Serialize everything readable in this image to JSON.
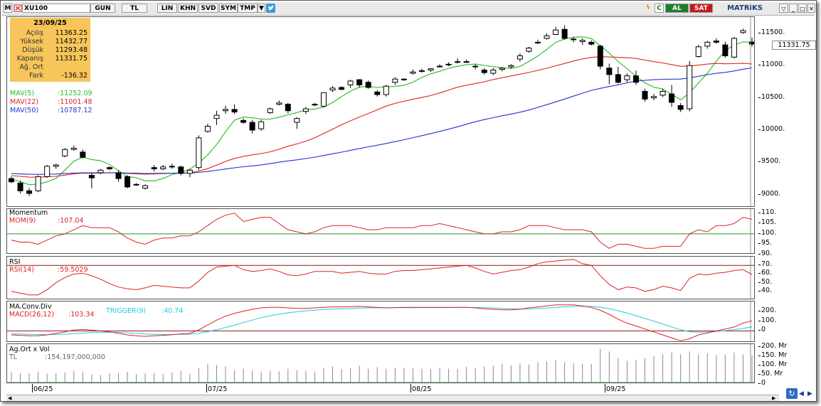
{
  "toolbar": {
    "menu_icon": "M",
    "symbol": "XU100",
    "buttons": [
      "GUN",
      "TL",
      "LIN",
      "KHN",
      "SVD",
      "SYM",
      "TMP"
    ],
    "al_label": "AL",
    "sat_label": "SAT",
    "brand": "MATRiKS",
    "c_label": "C"
  },
  "info": {
    "date": "23/09/25",
    "rows": [
      {
        "label": "Açılış",
        "value": "11363.25"
      },
      {
        "label": "Yüksek",
        "value": "11432.77"
      },
      {
        "label": "Düşük",
        "value": "11293.48"
      },
      {
        "label": "Kapanış",
        "value": "11331.75"
      },
      {
        "label": "Ağ. Ort",
        "value": ""
      },
      {
        "label": "Fark",
        "value": "-136.32"
      }
    ]
  },
  "ma_labels": [
    {
      "name": "MAV(5)",
      "value": ":11252.09",
      "color": "#22bb22"
    },
    {
      "name": "MAV(22)",
      "value": ":11001.48",
      "color": "#dd2222"
    },
    {
      "name": "MAV(50)",
      "value": ":10787.12",
      "color": "#2233cc"
    }
  ],
  "price_axis": {
    "ticks": [
      "11500.",
      "11000.",
      "10500.",
      "10000.",
      "9500.",
      "9000."
    ],
    "last": "11331.75"
  },
  "momentum": {
    "title": "Momentum",
    "label": "MOM(9)",
    "value": ":107.04",
    "ticks": [
      "110.",
      "105.",
      "100.",
      "95.",
      "90."
    ]
  },
  "rsi": {
    "title": "RSI",
    "label": "RSI(14)",
    "value": ":59.5029",
    "ticks": [
      "70.",
      "60.",
      "50.",
      "40."
    ]
  },
  "macd": {
    "title": "MA.Conv.Div",
    "label": "MACD(26,12)",
    "value": ":103.34",
    "trigger_label": "TRIGGER(9)",
    "trigger_value": ":40.74",
    "ticks": [
      "200.",
      "100.",
      "0"
    ]
  },
  "volume": {
    "title": "Ag.Ort x Vol",
    "label": "TL",
    "value": ":154,197,000,000",
    "ticks": [
      "200. Mr",
      "150. Mr",
      "100. Mr",
      "50. Mr",
      "0"
    ]
  },
  "time_axis": [
    "06/25",
    "07/25",
    "08/25",
    "09/25"
  ],
  "chart_data": {
    "type": "candlestick",
    "symbol": "XU100",
    "ylim": [
      8800,
      11750
    ],
    "candles": [
      [
        9250,
        9280,
        9180,
        9200
      ],
      [
        9180,
        9220,
        9020,
        9060
      ],
      [
        9060,
        9100,
        8980,
        9020
      ],
      [
        9060,
        9300,
        9040,
        9280
      ],
      [
        9280,
        9460,
        9260,
        9440
      ],
      [
        9440,
        9480,
        9400,
        9460
      ],
      [
        9600,
        9720,
        9580,
        9700
      ],
      [
        9700,
        9760,
        9680,
        9720
      ],
      [
        9660,
        9700,
        9560,
        9580
      ],
      [
        9300,
        9340,
        9100,
        9260
      ],
      [
        9340,
        9400,
        9320,
        9380
      ],
      [
        9420,
        9440,
        9380,
        9400
      ],
      [
        9340,
        9380,
        9200,
        9250
      ],
      [
        9280,
        9300,
        9100,
        9120
      ],
      [
        9160,
        9180,
        9140,
        9160
      ],
      [
        9100,
        9160,
        9080,
        9140
      ],
      [
        9420,
        9460,
        9360,
        9400
      ],
      [
        9400,
        9460,
        9380,
        9430
      ],
      [
        9440,
        9480,
        9400,
        9430
      ],
      [
        9430,
        9450,
        9300,
        9330
      ],
      [
        9330,
        9400,
        9270,
        9380
      ],
      [
        9420,
        9920,
        9380,
        9880
      ],
      [
        9980,
        10100,
        9960,
        10060
      ],
      [
        10180,
        10300,
        10080,
        10230
      ],
      [
        10300,
        10380,
        10250,
        10320
      ],
      [
        10320,
        10400,
        10250,
        10280
      ],
      [
        10150,
        10180,
        10100,
        10120
      ],
      [
        10120,
        10160,
        9950,
        10000
      ],
      [
        10020,
        10160,
        9990,
        10130
      ],
      [
        10270,
        10350,
        10250,
        10330
      ],
      [
        10400,
        10460,
        10380,
        10420
      ],
      [
        10400,
        10420,
        10260,
        10300
      ],
      [
        10120,
        10200,
        10020,
        10180
      ],
      [
        10290,
        10360,
        10250,
        10330
      ],
      [
        10390,
        10420,
        10370,
        10400
      ],
      [
        10370,
        10580,
        10350,
        10580
      ],
      [
        10620,
        10680,
        10590,
        10650
      ],
      [
        10660,
        10680,
        10620,
        10630
      ],
      [
        10700,
        10780,
        10650,
        10760
      ],
      [
        10780,
        10790,
        10660,
        10700
      ],
      [
        10740,
        10770,
        10640,
        10660
      ],
      [
        10590,
        10620,
        10520,
        10550
      ],
      [
        10550,
        10700,
        10520,
        10680
      ],
      [
        10740,
        10820,
        10700,
        10790
      ],
      [
        10780,
        10800,
        10760,
        10790
      ],
      [
        10880,
        10940,
        10860,
        10900
      ],
      [
        10920,
        10950,
        10890,
        10920
      ],
      [
        10930,
        10960,
        10900,
        10950
      ],
      [
        10980,
        11020,
        10970,
        10990
      ],
      [
        11010,
        11050,
        10990,
        11020
      ],
      [
        11050,
        11110,
        11030,
        11060
      ],
      [
        11060,
        11090,
        11040,
        11050
      ],
      [
        10990,
        11020,
        10940,
        10990
      ],
      [
        10930,
        10960,
        10860,
        10890
      ],
      [
        10880,
        10960,
        10850,
        10930
      ],
      [
        10940,
        10980,
        10910,
        10960
      ],
      [
        10980,
        11020,
        10950,
        11000
      ],
      [
        11100,
        11190,
        11060,
        11150
      ],
      [
        11220,
        11290,
        11200,
        11270
      ],
      [
        11350,
        11400,
        11330,
        11360
      ],
      [
        11420,
        11500,
        11400,
        11460
      ],
      [
        11480,
        11600,
        11470,
        11550
      ],
      [
        11560,
        11620,
        11400,
        11420
      ],
      [
        11410,
        11440,
        11360,
        11400
      ],
      [
        11370,
        11420,
        11320,
        11390
      ],
      [
        11360,
        11390,
        11310,
        11330
      ],
      [
        11300,
        11320,
        10940,
        10990
      ],
      [
        10960,
        11030,
        10710,
        10860
      ],
      [
        10860,
        10980,
        10720,
        10740
      ],
      [
        10780,
        10880,
        10740,
        10840
      ],
      [
        10840,
        10920,
        10700,
        10740
      ],
      [
        10600,
        10640,
        10440,
        10480
      ],
      [
        10500,
        10560,
        10460,
        10520
      ],
      [
        10540,
        10640,
        10510,
        10600
      ],
      [
        10560,
        10700,
        10360,
        10430
      ],
      [
        10380,
        10420,
        10280,
        10320
      ],
      [
        10330,
        11070,
        10290,
        11000
      ],
      [
        11140,
        11320,
        11120,
        11290
      ],
      [
        11300,
        11380,
        11260,
        11360
      ],
      [
        11380,
        11420,
        11340,
        11360
      ],
      [
        11320,
        11370,
        11120,
        11150
      ],
      [
        11130,
        11440,
        11110,
        11420
      ],
      [
        11510,
        11570,
        11490,
        11540
      ],
      [
        11363.25,
        11432.77,
        11293.48,
        11331.75
      ]
    ],
    "series": [
      {
        "name": "MAV(5)",
        "last": 11252.09,
        "color": "#22bb22"
      },
      {
        "name": "MAV(22)",
        "last": 11001.48,
        "color": "#dd2222"
      },
      {
        "name": "MAV(50)",
        "last": 10787.12,
        "color": "#2233cc"
      }
    ],
    "momentum": {
      "ylim": [
        90,
        112
      ],
      "reference": 100,
      "values": [
        97,
        96,
        96,
        95,
        97,
        99,
        100,
        102,
        104,
        103,
        103,
        103,
        101,
        98,
        96,
        95,
        97,
        98,
        98,
        99,
        99,
        101,
        104,
        107,
        109,
        110,
        106,
        107,
        108,
        108,
        105,
        102,
        101,
        100,
        101,
        103,
        104,
        104,
        104,
        103,
        102,
        102,
        103,
        103,
        103,
        103,
        104,
        104,
        105,
        104,
        103,
        102,
        101,
        100,
        100,
        101,
        101,
        102,
        104,
        104,
        104,
        103,
        102,
        102,
        102,
        101,
        96,
        93,
        95,
        95,
        94,
        93,
        93,
        94,
        94,
        94,
        100,
        102,
        101,
        104,
        104,
        105,
        108,
        107.04
      ]
    },
    "rsi": {
      "ylim": [
        30,
        80
      ],
      "reference": 70,
      "values": [
        40,
        38,
        36,
        36,
        42,
        50,
        56,
        60,
        61,
        58,
        54,
        49,
        45,
        43,
        42,
        44,
        47,
        46,
        45,
        44,
        44,
        52,
        62,
        68,
        69,
        70,
        65,
        63,
        64,
        66,
        63,
        59,
        58,
        60,
        63,
        63,
        63,
        61,
        62,
        63,
        61,
        60,
        60,
        63,
        64,
        64,
        65,
        66,
        67,
        68,
        69,
        70,
        67,
        63,
        60,
        62,
        64,
        65,
        68,
        72,
        74,
        75,
        76,
        77,
        72,
        70,
        58,
        48,
        42,
        45,
        44,
        40,
        42,
        46,
        44,
        41,
        55,
        60,
        59,
        61,
        62,
        64,
        65,
        59.5
      ]
    },
    "macd": {
      "ylim": [
        -120,
        300
      ],
      "macd": [
        -40,
        -45,
        -50,
        -48,
        -40,
        -25,
        -10,
        10,
        15,
        8,
        0,
        -10,
        -25,
        -40,
        -50,
        -55,
        -50,
        -45,
        -38,
        -30,
        -25,
        10,
        60,
        110,
        150,
        180,
        200,
        220,
        235,
        240,
        240,
        235,
        230,
        230,
        235,
        240,
        245,
        245,
        248,
        250,
        245,
        240,
        235,
        238,
        240,
        240,
        240,
        240,
        240,
        240,
        240,
        240,
        235,
        225,
        220,
        215,
        215,
        220,
        235,
        245,
        255,
        265,
        265,
        265,
        255,
        240,
        210,
        170,
        120,
        80,
        50,
        20,
        -10,
        -40,
        -70,
        -100,
        -80,
        -40,
        -20,
        0,
        20,
        40,
        80,
        103.34
      ],
      "trigger": [
        -30,
        -32,
        -35,
        -37,
        -38,
        -36,
        -33,
        -28,
        -22,
        -17,
        -13,
        -12,
        -14,
        -19,
        -25,
        -31,
        -35,
        -37,
        -37,
        -35,
        -33,
        -24,
        -8,
        12,
        35,
        60,
        85,
        110,
        135,
        155,
        170,
        185,
        195,
        205,
        212,
        218,
        222,
        226,
        230,
        233,
        235,
        236,
        236,
        236,
        237,
        237,
        238,
        238,
        238,
        238,
        239,
        239,
        239,
        237,
        234,
        230,
        226,
        223,
        224,
        228,
        234,
        241,
        246,
        250,
        251,
        249,
        241,
        227,
        206,
        181,
        155,
        128,
        100,
        71,
        41,
        12,
        -8,
        -13,
        -11,
        -5,
        3,
        13,
        26,
        40.74
      ]
    },
    "volume": {
      "ylim": [
        0,
        215
      ],
      "values": [
        62,
        58,
        60,
        66,
        55,
        58,
        62,
        70,
        64,
        52,
        48,
        58,
        60,
        66,
        54,
        58,
        60,
        55,
        62,
        70,
        55,
        85,
        110,
        102,
        95,
        75,
        82,
        70,
        65,
        72,
        68,
        82,
        75,
        70,
        66,
        86,
        94,
        80,
        85,
        98,
        82,
        90,
        82,
        88,
        88,
        85,
        82,
        80,
        88,
        82,
        80,
        92,
        88,
        95,
        98,
        110,
        100,
        110,
        105,
        118,
        122,
        128,
        118,
        112,
        110,
        108,
        190,
        175,
        140,
        125,
        130,
        140,
        150,
        160,
        170,
        160,
        175,
        160,
        165,
        155,
        158,
        170,
        160,
        154.2
      ]
    }
  }
}
